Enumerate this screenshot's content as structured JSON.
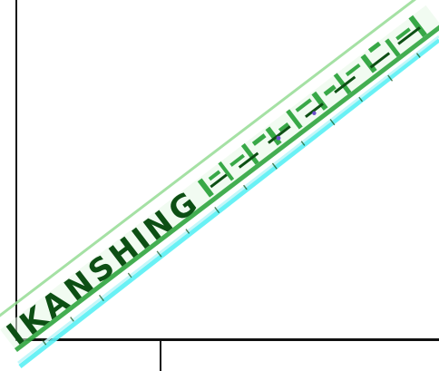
{
  "colors": {
    "axis": "#111111",
    "ink_dark": "#0d4f14",
    "ink_green": "#24a035",
    "ink_light": "#8fd98d",
    "glow": "#59f0f5",
    "accent": "#6a4cc9",
    "background": "#ffffff"
  }
}
